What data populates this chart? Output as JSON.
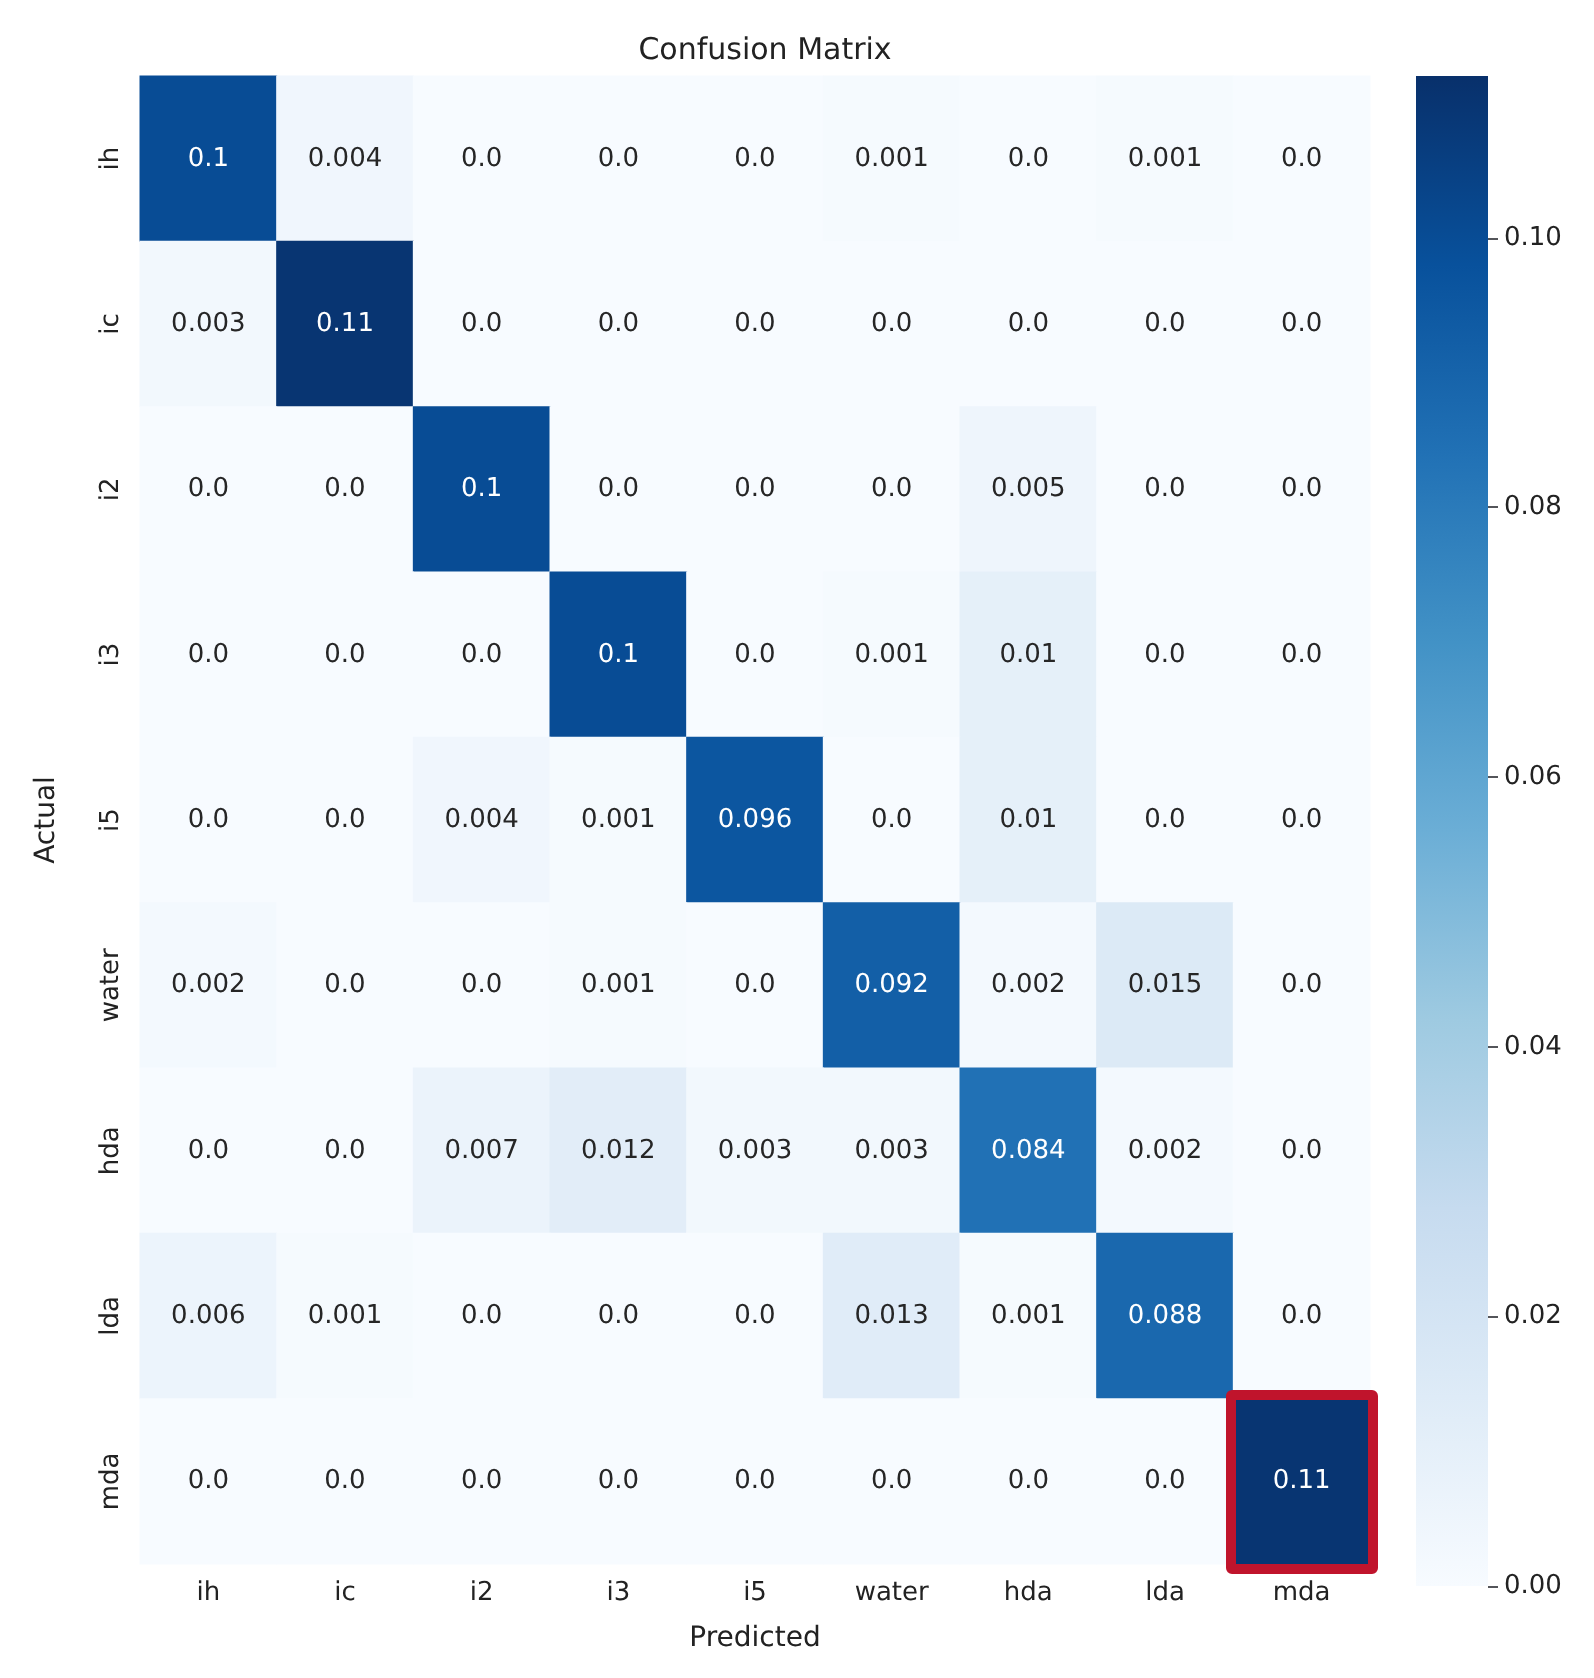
{
  "chart_data": {
    "type": "heatmap",
    "title": "Confusion Matrix",
    "xlabel": "Predicted",
    "ylabel": "Actual",
    "categories": [
      "ih",
      "ic",
      "i2",
      "i3",
      "i5",
      "water",
      "hda",
      "lda",
      "mda"
    ],
    "y_categories": [
      "ih",
      "ic",
      "i2",
      "i3",
      "i5",
      "water",
      "hda",
      "lda",
      "mda"
    ],
    "cells": [
      [
        0.1,
        0.004,
        0,
        0,
        0,
        0.001,
        0,
        0.001,
        0
      ],
      [
        0.003,
        0.11,
        0,
        0,
        0,
        0,
        0,
        0,
        0
      ],
      [
        0,
        0,
        0.1,
        0,
        0,
        0,
        0.005,
        0,
        0
      ],
      [
        0,
        0,
        0,
        0.1,
        0,
        0.001,
        0.01,
        0,
        0
      ],
      [
        0,
        0,
        0.004,
        0.001,
        0.096,
        0,
        0.01,
        0,
        0
      ],
      [
        0.002,
        0,
        0,
        0.001,
        0,
        0.092,
        0.002,
        0.015,
        0
      ],
      [
        0,
        0,
        0.007,
        0.012,
        0.003,
        0.003,
        0.084,
        0.002,
        0
      ],
      [
        0.006,
        0.001,
        0,
        0,
        0,
        0.013,
        0.001,
        0.088,
        0
      ],
      [
        0,
        0,
        0,
        0,
        0,
        0,
        0,
        0,
        0.11
      ]
    ],
    "cell_labels": [
      [
        "0.1",
        "0.004",
        "0.0",
        "0.0",
        "0.0",
        "0.001",
        "0.0",
        "0.001",
        "0.0"
      ],
      [
        "0.003",
        "0.11",
        "0.0",
        "0.0",
        "0.0",
        "0.0",
        "0.0",
        "0.0",
        "0.0"
      ],
      [
        "0.0",
        "0.0",
        "0.1",
        "0.0",
        "0.0",
        "0.0",
        "0.005",
        "0.0",
        "0.0"
      ],
      [
        "0.0",
        "0.0",
        "0.0",
        "0.1",
        "0.0",
        "0.001",
        "0.01",
        "0.0",
        "0.0"
      ],
      [
        "0.0",
        "0.0",
        "0.004",
        "0.001",
        "0.096",
        "0.0",
        "0.01",
        "0.0",
        "0.0"
      ],
      [
        "0.002",
        "0.0",
        "0.0",
        "0.001",
        "0.0",
        "0.092",
        "0.002",
        "0.015",
        "0.0"
      ],
      [
        "0.0",
        "0.0",
        "0.007",
        "0.012",
        "0.003",
        "0.003",
        "0.084",
        "0.002",
        "0.0"
      ],
      [
        "0.006",
        "0.001",
        "0.0",
        "0.0",
        "0.0",
        "0.013",
        "0.001",
        "0.088",
        "0.0"
      ],
      [
        "0.0",
        "0.0",
        "0.0",
        "0.0",
        "0.0",
        "0.0",
        "0.0",
        "0.0",
        "0.11"
      ]
    ],
    "clim": [
      0,
      0.112
    ],
    "cticks": [
      {
        "value": 0,
        "label": "0.00"
      },
      {
        "value": 0.02,
        "label": "0.02"
      },
      {
        "value": 0.04,
        "label": "0.04"
      },
      {
        "value": 0.06,
        "label": "0.06"
      },
      {
        "value": 0.08,
        "label": "0.08"
      },
      {
        "value": 0.1,
        "label": "0.10"
      }
    ]
  }
}
